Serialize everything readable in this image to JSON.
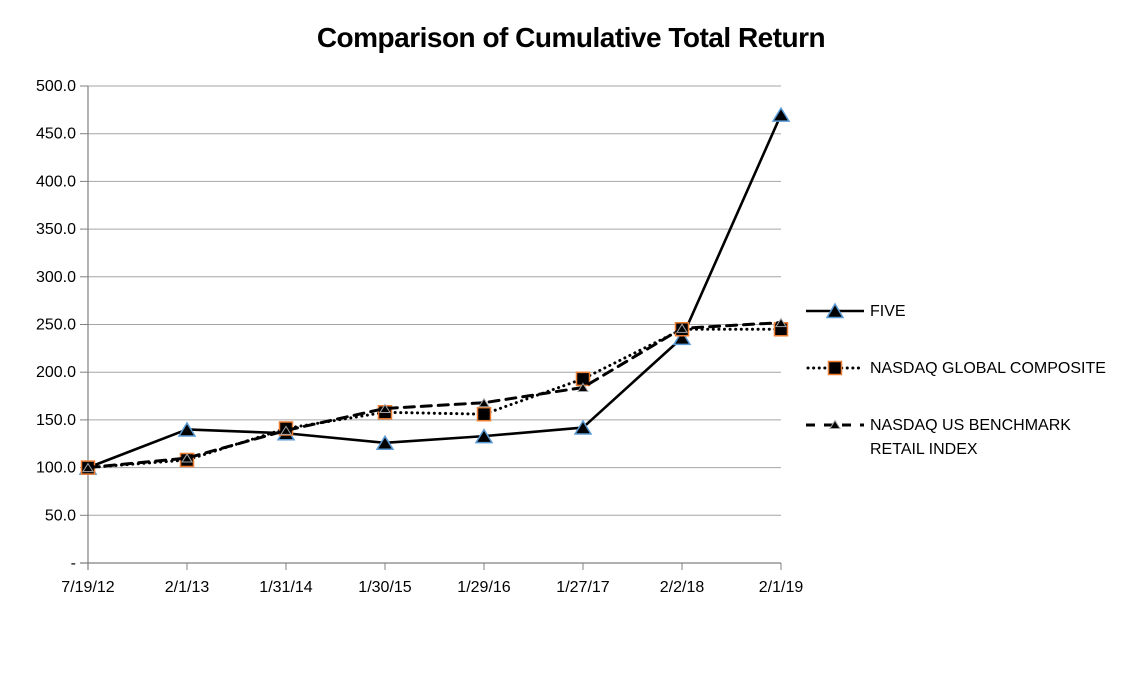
{
  "title": "Comparison of Cumulative Total Return",
  "chart_data": {
    "type": "line",
    "title": "Comparison of Cumulative Total Return",
    "categories": [
      "7/19/12",
      "2/1/13",
      "1/31/14",
      "1/30/15",
      "1/29/16",
      "1/27/17",
      "2/2/18",
      "2/1/19"
    ],
    "series": [
      {
        "name": "FIVE",
        "values": [
          100.0,
          140.0,
          136.0,
          126.0,
          133.0,
          142.0,
          236.0,
          470.0
        ],
        "line_style": "solid",
        "marker": "triangle",
        "line_color": "#000000",
        "marker_fill": "#000000",
        "marker_border": "#5B9BD5"
      },
      {
        "name": "NASDAQ GLOBAL COMPOSITE",
        "values": [
          100.0,
          108.0,
          141.0,
          158.0,
          156.0,
          193.0,
          245.0,
          245.0
        ],
        "line_style": "dotted",
        "marker": "square",
        "line_color": "#000000",
        "marker_fill": "#000000",
        "marker_border": "#ED7D31"
      },
      {
        "name": "NASDAQ US BENCHMARK RETAIL INDEX",
        "values": [
          100.0,
          110.0,
          139.0,
          162.0,
          168.0,
          184.0,
          246.0,
          252.0
        ],
        "line_style": "dashed",
        "marker": "small-triangle",
        "line_color": "#000000",
        "marker_fill": "#000000",
        "marker_border": "#A5A5A5"
      }
    ],
    "xlabel": "",
    "ylabel": "",
    "ylim": [
      0,
      500
    ],
    "y_tick_step": 50,
    "y_tick_labels": [
      "-",
      "50.0",
      "100.0",
      "150.0",
      "200.0",
      "250.0",
      "300.0",
      "350.0",
      "400.0",
      "450.0",
      "500.0"
    ],
    "grid": "horizontal",
    "legend_position": "right",
    "axis_color": "#808080",
    "grid_color": "#A6A6A6",
    "label_color": "#000000"
  },
  "legend": {
    "items": [
      {
        "label": "FIVE"
      },
      {
        "label": "NASDAQ GLOBAL COMPOSITE"
      },
      {
        "label": "NASDAQ US BENCHMARK\nRETAIL INDEX"
      }
    ]
  }
}
